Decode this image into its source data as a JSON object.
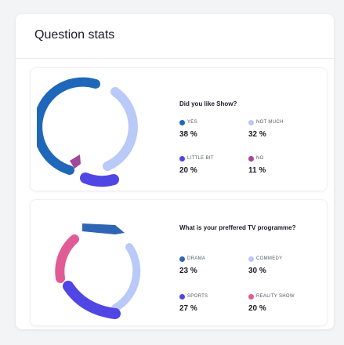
{
  "card": {
    "title": "Question stats"
  },
  "panels": [
    {
      "question": "Did you like Show?",
      "options": [
        {
          "label": "YES",
          "value": "38 %",
          "color": "#1f67b8",
          "pct": 38
        },
        {
          "label": "NOT MUCH",
          "value": "32 %",
          "color": "#b9c9f8",
          "pct": 32
        },
        {
          "label": "LITTLE BIT",
          "value": "20 %",
          "color": "#5046e4",
          "pct": 20
        },
        {
          "label": "NO",
          "value": "11 %",
          "color": "#a3479a",
          "pct": 11
        }
      ]
    },
    {
      "question": "What is your preffered TV programme?",
      "options": [
        {
          "label": "DRAMA",
          "value": "23 %",
          "color": "#2f66b3",
          "pct": 23
        },
        {
          "label": "COMMEDY",
          "value": "30 %",
          "color": "#b9c9f8",
          "pct": 30
        },
        {
          "label": "SPORTS",
          "value": "27 %",
          "color": "#5046e4",
          "pct": 27
        },
        {
          "label": "REALITY SHOW",
          "value": "20 %",
          "color": "#e15b96",
          "pct": 20
        }
      ]
    }
  ]
}
